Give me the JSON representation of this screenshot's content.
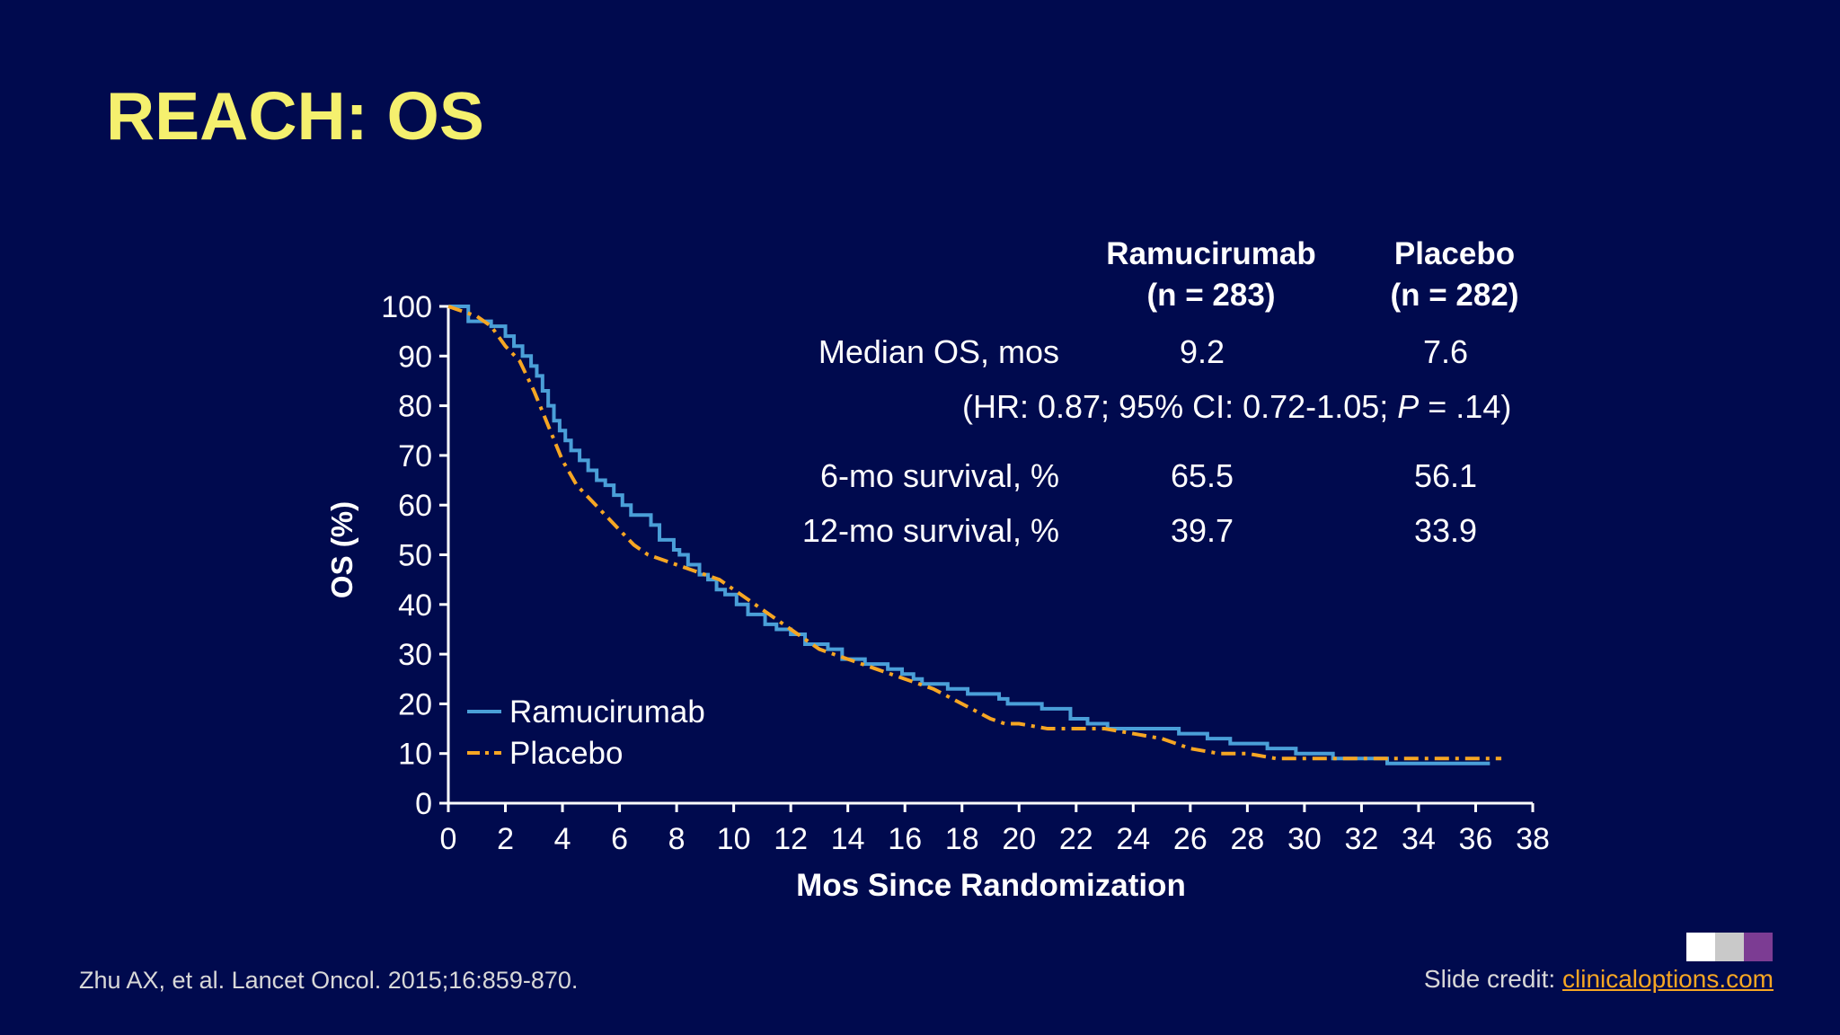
{
  "slide": {
    "title": "REACH: OS",
    "citation": "Zhu AX, et al. Lancet Oncol. 2015;16:859-870.",
    "credit_prefix": "Slide credit: ",
    "credit_link": "clinicaloptions.com"
  },
  "table": {
    "col1_name": "Ramucirumab",
    "col1_n": "(n = 283)",
    "col2_name": "Placebo",
    "col2_n": "(n = 282)",
    "rows": [
      {
        "label": "Median OS, mos",
        "v1": "9.2",
        "v2": "7.6"
      },
      {
        "label": "6-mo survival, %",
        "v1": "65.5",
        "v2": "56.1"
      },
      {
        "label": "12-mo survival, %",
        "v1": "39.7",
        "v2": "33.9"
      }
    ],
    "hr_prefix": "(HR: 0.87; 95% CI: 0.72-1.05; ",
    "hr_p": "P",
    "hr_suffix": " = .14)"
  },
  "colors": {
    "background": "#000a4e",
    "title": "#f5f06e",
    "ramucirumab": "#4a9fd8",
    "placebo": "#f6a623",
    "axis": "#ffffff"
  },
  "chart_data": {
    "type": "line",
    "xlabel": "Mos Since Randomization",
    "ylabel": "OS (%)",
    "xlim": [
      0,
      38
    ],
    "ylim": [
      0,
      100
    ],
    "xticks": [
      0,
      2,
      4,
      6,
      8,
      10,
      12,
      14,
      16,
      18,
      20,
      22,
      24,
      26,
      28,
      30,
      32,
      34,
      36,
      38
    ],
    "yticks": [
      0,
      10,
      20,
      30,
      40,
      50,
      60,
      70,
      80,
      90,
      100
    ],
    "grid": false,
    "legend_position": "bottom-left",
    "series": [
      {
        "name": "Ramucirumab",
        "style": "solid",
        "step": true,
        "x": [
          0,
          0.7,
          1.5,
          2.0,
          2.3,
          2.6,
          2.9,
          3.1,
          3.3,
          3.5,
          3.7,
          3.9,
          4.1,
          4.3,
          4.6,
          4.9,
          5.2,
          5.5,
          5.8,
          6.1,
          6.4,
          6.7,
          6.9,
          7.1,
          7.4,
          7.9,
          8.1,
          8.4,
          8.8,
          9.1,
          9.4,
          9.7,
          10.1,
          10.5,
          11.1,
          11.5,
          12.0,
          12.5,
          13.3,
          13.8,
          14.6,
          15.4,
          15.9,
          16.3,
          16.6,
          17.5,
          18.2,
          19.3,
          19.6,
          20.8,
          21.8,
          22.4,
          23.1,
          25.6,
          26.6,
          27.4,
          28.7,
          29.7,
          31.0,
          32.9,
          36.5
        ],
        "y": [
          100,
          97,
          96,
          94,
          92,
          90,
          88,
          86,
          83,
          80,
          77,
          75,
          73,
          71,
          69,
          67,
          65,
          64,
          62,
          60,
          58,
          58,
          58,
          56,
          53,
          51,
          50,
          48,
          46,
          45,
          43,
          42,
          40,
          38,
          36,
          35,
          34,
          32,
          31,
          29,
          28,
          27,
          26,
          25,
          24,
          23,
          22,
          21,
          20,
          19,
          17,
          16,
          15,
          14,
          13,
          12,
          11,
          10,
          9,
          8,
          8
        ]
      },
      {
        "name": "Placebo",
        "style": "dash-dot",
        "step": false,
        "x": [
          0,
          1.0,
          1.5,
          2.0,
          2.5,
          3.0,
          3.5,
          4.0,
          4.5,
          5.0,
          5.5,
          6.0,
          6.5,
          7.0,
          7.5,
          8.0,
          8.5,
          9.0,
          9.5,
          10.0,
          10.5,
          11.0,
          11.5,
          12.0,
          12.5,
          13.0,
          13.5,
          14.0,
          15.0,
          16.0,
          17.0,
          18.0,
          19.0,
          19.5,
          20.0,
          21.0,
          22.0,
          23.0,
          24.0,
          25.0,
          26.0,
          27.0,
          28.0,
          29.0,
          30.0,
          31.0,
          32.0,
          33.0,
          34.0,
          35.0,
          36.0,
          36.9
        ],
        "y": [
          100,
          98,
          96,
          92,
          89,
          83,
          76,
          69,
          64,
          61,
          58,
          55,
          52,
          50,
          49,
          48,
          47,
          46,
          45,
          43,
          41,
          39,
          37,
          35,
          33,
          31,
          30,
          29,
          27,
          25,
          23,
          20,
          17,
          16,
          16,
          15,
          15,
          15,
          14,
          13,
          11,
          10,
          10,
          9,
          9,
          9,
          9,
          9,
          9,
          9,
          9,
          9
        ]
      }
    ]
  }
}
